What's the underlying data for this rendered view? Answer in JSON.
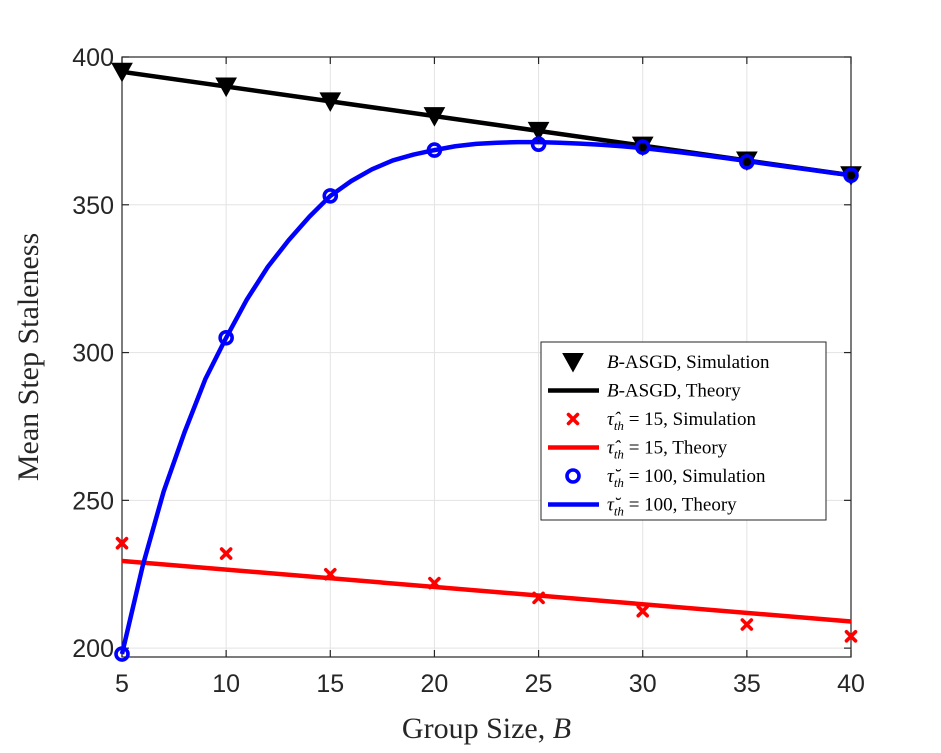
{
  "chart_data": {
    "type": "line",
    "title": "",
    "xlabel_text": "Group Size, ",
    "xlabel_var": "B",
    "ylabel": "Mean Step Staleness",
    "xlim": [
      5,
      40
    ],
    "ylim": [
      197,
      400
    ],
    "xticks": [
      5,
      10,
      15,
      20,
      25,
      30,
      35,
      40
    ],
    "yticks": [
      200,
      250,
      300,
      350,
      400
    ],
    "grid": true,
    "legend_placement": "center-right",
    "colors": {
      "black": "#000000",
      "red": "#ff0000",
      "blue": "#0000ff"
    },
    "series": [
      {
        "name": "B-ASGD, Simulation",
        "legend_math": "B",
        "legend_rest": "-ASGD, Simulation",
        "kind": "markers",
        "marker": "triangle-down",
        "color": "#000000",
        "x": [
          5,
          10,
          15,
          20,
          25,
          30,
          35,
          40
        ],
        "y": [
          395,
          390,
          385,
          380,
          375,
          370,
          365,
          360
        ]
      },
      {
        "name": "B-ASGD, Theory",
        "legend_math": "B",
        "legend_rest": "-ASGD, Theory",
        "kind": "line",
        "color": "#000000",
        "x": [
          5,
          40
        ],
        "y": [
          395,
          360
        ]
      },
      {
        "name": "τ̂th = 15, Simulation",
        "legend_math": "τ̂",
        "legend_sub": "th",
        "legend_rest": " = 15, Simulation",
        "kind": "markers",
        "marker": "x",
        "color": "#ff0000",
        "x": [
          5,
          10,
          15,
          20,
          25,
          30,
          35,
          40
        ],
        "y": [
          235.5,
          232,
          225,
          222,
          217,
          212.5,
          208,
          204
        ]
      },
      {
        "name": "τ̂th = 15, Theory",
        "legend_math": "τ̂",
        "legend_sub": "th",
        "legend_rest": " = 15, Theory",
        "kind": "line",
        "color": "#ff0000",
        "x": [
          5,
          40
        ],
        "y": [
          229.5,
          209
        ]
      },
      {
        "name": "τ̆th = 100, Simulation",
        "legend_math": "τ̆",
        "legend_sub": "th",
        "legend_rest": " = 100, Simulation",
        "kind": "markers",
        "marker": "circle",
        "color": "#0000ff",
        "x": [
          5,
          10,
          15,
          20,
          25,
          30,
          35,
          40
        ],
        "y": [
          198,
          305,
          353,
          368.5,
          370.5,
          369.5,
          364.5,
          360
        ]
      },
      {
        "name": "τ̆th = 100, Theory",
        "legend_math": "τ̆",
        "legend_sub": "th",
        "legend_rest": " = 100, Theory",
        "kind": "line",
        "color": "#0000ff",
        "x": [
          5,
          6,
          7,
          8,
          9,
          10,
          11,
          12,
          13,
          14,
          15,
          16,
          17,
          18,
          19,
          20,
          21,
          22,
          23,
          24,
          25,
          26,
          27,
          28,
          29,
          30,
          31,
          32,
          33,
          34,
          35,
          36,
          37,
          38,
          39,
          40
        ],
        "y": [
          198,
          228,
          253,
          273,
          291,
          305,
          318,
          329,
          338,
          346,
          353,
          358,
          362,
          365,
          367,
          368.5,
          369.8,
          370.6,
          371,
          371.2,
          371.2,
          371,
          370.7,
          370.3,
          369.8,
          369.2,
          368.4,
          367.6,
          366.7,
          365.8,
          364.8,
          363.8,
          362.8,
          361.9,
          360.9,
          360
        ]
      }
    ]
  }
}
